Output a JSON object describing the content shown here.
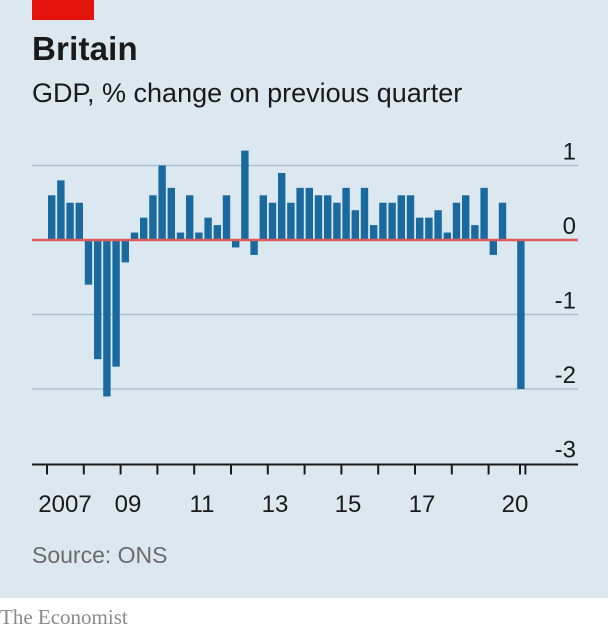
{
  "header": {
    "title": "Britain",
    "subtitle": "GDP, % change on previous quarter"
  },
  "source": "Source: ONS",
  "footer": "The Economist",
  "colors": {
    "bar": "#1a6aa0",
    "zero_line": "#e05a5a",
    "grid": "#a9bfcf",
    "background": "#dce8f0",
    "accent": "#e3120b"
  },
  "chart_data": {
    "type": "bar",
    "title": "Britain",
    "subtitle": "GDP, % change on previous quarter",
    "xlabel": "",
    "ylabel": "",
    "ylim": [
      -3,
      1.2
    ],
    "yticks": [
      "1",
      "0",
      "-1",
      "-2",
      "-3"
    ],
    "xtick_labels": [
      "2007",
      "09",
      "11",
      "13",
      "15",
      "17",
      "20"
    ],
    "grid": true,
    "quarters_start": "2007 Q1",
    "values": [
      0.6,
      0.8,
      0.5,
      0.5,
      -0.6,
      -1.6,
      -2.1,
      -1.7,
      -0.3,
      0.1,
      0.3,
      0.6,
      1.0,
      0.7,
      0.1,
      0.6,
      0.1,
      0.3,
      0.2,
      0.6,
      -0.1,
      1.2,
      -0.2,
      0.6,
      0.5,
      0.9,
      0.5,
      0.7,
      0.7,
      0.6,
      0.6,
      0.5,
      0.7,
      0.4,
      0.7,
      0.2,
      0.5,
      0.5,
      0.6,
      0.6,
      0.3,
      0.3,
      0.4,
      0.1,
      0.5,
      0.6,
      0.2,
      0.7,
      -0.2,
      0.5,
      0.0,
      -2.0
    ]
  }
}
